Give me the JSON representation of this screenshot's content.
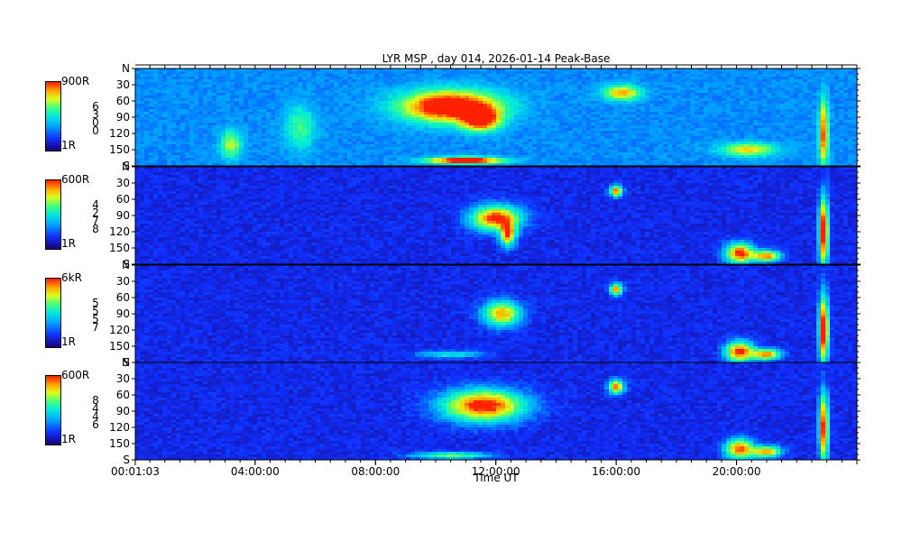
{
  "title": "LYR MSP , day 014, 2026-01-14 Peak-Base",
  "chart_data": {
    "type": "heatmap",
    "title": "LYR MSP , day 014, 2026-01-14 Peak-Base",
    "xlabel": "Time UT",
    "x_ticks": [
      "00:01:03",
      "04:00:00",
      "08:00:00",
      "12:00:00",
      "16:00:00",
      "20:00:00"
    ],
    "x_tick_hours": [
      0.0175,
      4,
      8,
      12,
      16,
      20
    ],
    "xlim_hours": [
      0.0175,
      24
    ],
    "y_ticks": [
      "N",
      "30",
      "60",
      "90",
      "120",
      "150",
      "S"
    ],
    "y_tick_values": [
      0,
      30,
      60,
      90,
      120,
      150,
      180
    ],
    "ylim_deg": [
      0,
      180
    ],
    "colormap": [
      "#1a0070",
      "#1030ff",
      "#00a0ff",
      "#00e8e0",
      "#40ff80",
      "#d8ff20",
      "#ffb000",
      "#ff2000"
    ],
    "panels": [
      {
        "channel_label": [
          "6",
          "3",
          "0",
          "0"
        ],
        "scale_max": "900R",
        "scale_min": "1R",
        "features": [
          {
            "t": 10.5,
            "z": 70,
            "dt": 1.6,
            "dz": 28,
            "i": 1.0
          },
          {
            "t": 11.5,
            "z": 95,
            "dt": 0.6,
            "dz": 20,
            "i": 0.8
          },
          {
            "t": 11.0,
            "z": 170,
            "dt": 1.2,
            "dz": 6,
            "i": 1.0
          },
          {
            "t": 16.2,
            "z": 45,
            "dt": 0.6,
            "dz": 14,
            "i": 0.6
          },
          {
            "t": 22.9,
            "z": 120,
            "dt": 0.15,
            "dz": 60,
            "i": 0.7
          },
          {
            "t": 20.4,
            "z": 150,
            "dt": 0.9,
            "dz": 12,
            "i": 0.55
          },
          {
            "t": 3.2,
            "z": 140,
            "dt": 0.35,
            "dz": 25,
            "i": 0.45
          },
          {
            "t": 5.5,
            "z": 110,
            "dt": 0.5,
            "dz": 40,
            "i": 0.3
          }
        ]
      },
      {
        "channel_label": [
          "4",
          "2",
          "7",
          "8"
        ],
        "scale_max": "600R",
        "scale_min": "1R",
        "features": [
          {
            "t": 12.0,
            "z": 95,
            "dt": 0.8,
            "dz": 22,
            "i": 0.9
          },
          {
            "t": 12.4,
            "z": 125,
            "dt": 0.25,
            "dz": 20,
            "i": 0.8
          },
          {
            "t": 16.0,
            "z": 45,
            "dt": 0.2,
            "dz": 10,
            "i": 0.8
          },
          {
            "t": 22.9,
            "z": 120,
            "dt": 0.15,
            "dz": 60,
            "i": 1.0
          },
          {
            "t": 20.1,
            "z": 160,
            "dt": 0.45,
            "dz": 18,
            "i": 0.9
          },
          {
            "t": 21.0,
            "z": 165,
            "dt": 0.45,
            "dz": 10,
            "i": 0.8
          }
        ]
      },
      {
        "channel_label": [
          "5",
          "5",
          "5",
          "7"
        ],
        "scale_max": "6kR",
        "scale_min": "1R",
        "features": [
          {
            "t": 12.2,
            "z": 90,
            "dt": 0.6,
            "dz": 22,
            "i": 0.75
          },
          {
            "t": 16.0,
            "z": 45,
            "dt": 0.2,
            "dz": 10,
            "i": 0.8
          },
          {
            "t": 22.9,
            "z": 120,
            "dt": 0.15,
            "dz": 60,
            "i": 1.0
          },
          {
            "t": 20.1,
            "z": 160,
            "dt": 0.45,
            "dz": 18,
            "i": 0.9
          },
          {
            "t": 21.0,
            "z": 165,
            "dt": 0.45,
            "dz": 10,
            "i": 0.8
          },
          {
            "t": 10.5,
            "z": 165,
            "dt": 1.0,
            "dz": 6,
            "i": 0.35
          }
        ]
      },
      {
        "channel_label": [
          "8",
          "4",
          "4",
          "6"
        ],
        "scale_max": "600R",
        "scale_min": "1R",
        "features": [
          {
            "t": 11.6,
            "z": 80,
            "dt": 1.3,
            "dz": 28,
            "i": 0.95
          },
          {
            "t": 16.0,
            "z": 45,
            "dt": 0.25,
            "dz": 12,
            "i": 0.8
          },
          {
            "t": 22.9,
            "z": 120,
            "dt": 0.15,
            "dz": 60,
            "i": 0.9
          },
          {
            "t": 20.1,
            "z": 160,
            "dt": 0.45,
            "dz": 18,
            "i": 0.85
          },
          {
            "t": 21.0,
            "z": 165,
            "dt": 0.45,
            "dz": 10,
            "i": 0.8
          },
          {
            "t": 10.5,
            "z": 172,
            "dt": 1.2,
            "dz": 6,
            "i": 0.5
          }
        ]
      }
    ]
  }
}
